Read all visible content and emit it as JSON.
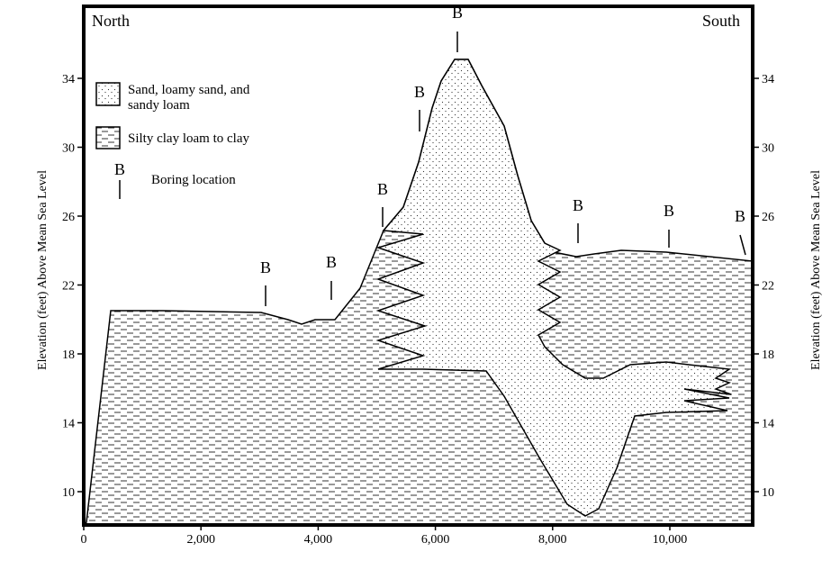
{
  "header": {
    "left": "North",
    "right": "South"
  },
  "y_axis_label": "Elevation (feet) Above Mean Sea Level",
  "x_ticks": [
    "0",
    "2,000",
    "4,000",
    "6,000",
    "8,000",
    "10,000"
  ],
  "y_ticks": [
    10,
    14,
    18,
    22,
    26,
    30,
    34
  ],
  "legend": {
    "sand": [
      "Sand, loamy sand, and",
      "sandy loam"
    ],
    "clay": "Silty clay loam to clay",
    "boring_symbol": "B",
    "boring": "Boring location"
  }
}
